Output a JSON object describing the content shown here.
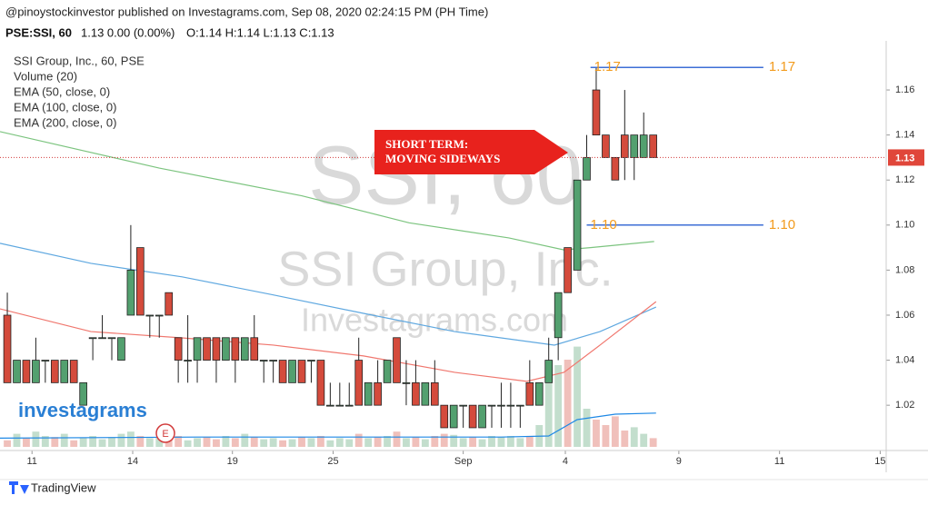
{
  "header": {
    "line1": "@pinoystockinvestor published on Investagrams.com, Sep 08, 2020 02:24:15 PM (PH Time)",
    "symbol": "PSE:SSI, 60",
    "quote": "1.13 0.00 (0.00%)",
    "ohlc_text": "O:1.14 H:1.14 L:1.13 C:1.13"
  },
  "chart_data": {
    "type": "candlestick",
    "legend": [
      "SSI Group, Inc., 60, PSE",
      "Volume (20)",
      "EMA (50, close, 0)",
      "EMA (100, close, 0)",
      "EMA (200, close, 0)"
    ],
    "watermark": [
      "SSI, 60",
      "SSI Group, Inc.",
      "Investagrams.com"
    ],
    "up_color": "#53a06f",
    "down_color": "#d44b3c",
    "x": [
      0,
      1,
      2,
      3,
      4,
      5,
      6,
      7,
      8,
      9,
      10,
      11,
      12,
      13,
      14,
      15,
      16,
      17,
      18,
      19,
      20,
      21,
      22,
      23,
      24,
      25,
      26,
      27,
      28,
      29,
      30,
      31,
      32,
      33,
      34,
      35,
      36,
      37,
      38,
      39,
      40,
      41,
      42,
      43,
      44,
      45,
      46,
      47,
      48,
      49,
      50,
      51,
      52,
      53,
      54,
      55,
      56,
      57,
      58,
      59,
      60,
      61,
      62,
      63,
      64,
      65,
      66,
      67,
      68
    ],
    "open": [
      1.06,
      1.03,
      1.04,
      1.03,
      1.04,
      1.04,
      1.03,
      1.04,
      1.02,
      1.05,
      1.05,
      1.05,
      1.04,
      1.06,
      1.09,
      1.06,
      1.06,
      1.07,
      1.05,
      1.04,
      1.04,
      1.05,
      1.05,
      1.04,
      1.05,
      1.04,
      1.05,
      1.04,
      1.04,
      1.04,
      1.03,
      1.04,
      1.04,
      1.04,
      1.02,
      1.02,
      1.02,
      1.04,
      1.02,
      1.03,
      1.03,
      1.05,
      1.03,
      1.03,
      1.02,
      1.03,
      1.02,
      1.01,
      1.02,
      1.02,
      1.01,
      1.02,
      1.02,
      1.02,
      1.02,
      1.03,
      1.02,
      1.03,
      1.05,
      1.09,
      1.08,
      1.12,
      1.16,
      1.14,
      1.13,
      1.14,
      1.13,
      1.13,
      1.14
    ],
    "high": [
      1.07,
      1.04,
      1.04,
      1.05,
      1.04,
      1.04,
      1.04,
      1.04,
      1.03,
      1.05,
      1.06,
      1.05,
      1.05,
      1.1,
      1.09,
      1.06,
      1.06,
      1.07,
      1.05,
      1.06,
      1.05,
      1.05,
      1.05,
      1.05,
      1.05,
      1.05,
      1.06,
      1.04,
      1.04,
      1.04,
      1.04,
      1.04,
      1.04,
      1.04,
      1.03,
      1.03,
      1.03,
      1.05,
      1.03,
      1.04,
      1.04,
      1.05,
      1.04,
      1.04,
      1.03,
      1.04,
      1.02,
      1.02,
      1.02,
      1.02,
      1.02,
      1.02,
      1.03,
      1.03,
      1.02,
      1.04,
      1.03,
      1.05,
      1.07,
      1.09,
      1.12,
      1.14,
      1.17,
      1.14,
      1.13,
      1.16,
      1.14,
      1.15,
      1.14
    ],
    "low": [
      1.03,
      1.03,
      1.03,
      1.03,
      1.03,
      1.03,
      1.03,
      1.03,
      1.02,
      1.04,
      1.05,
      1.04,
      1.04,
      1.06,
      1.06,
      1.05,
      1.05,
      1.06,
      1.03,
      1.03,
      1.03,
      1.04,
      1.03,
      1.04,
      1.03,
      1.04,
      1.04,
      1.03,
      1.03,
      1.03,
      1.03,
      1.03,
      1.03,
      1.02,
      1.02,
      1.02,
      1.02,
      1.02,
      1.02,
      1.02,
      1.03,
      1.03,
      1.02,
      1.02,
      1.02,
      1.02,
      1.01,
      1.01,
      1.01,
      1.01,
      1.01,
      1.01,
      1.01,
      1.01,
      1.01,
      1.02,
      1.02,
      1.03,
      1.04,
      1.07,
      1.08,
      1.12,
      1.14,
      1.13,
      1.12,
      1.12,
      1.12,
      1.13,
      1.13
    ],
    "close": [
      1.03,
      1.04,
      1.03,
      1.04,
      1.04,
      1.03,
      1.04,
      1.03,
      1.03,
      1.05,
      1.05,
      1.05,
      1.05,
      1.08,
      1.06,
      1.06,
      1.06,
      1.06,
      1.04,
      1.04,
      1.05,
      1.04,
      1.04,
      1.05,
      1.04,
      1.05,
      1.04,
      1.04,
      1.04,
      1.03,
      1.04,
      1.03,
      1.04,
      1.02,
      1.02,
      1.02,
      1.02,
      1.02,
      1.03,
      1.02,
      1.04,
      1.03,
      1.03,
      1.02,
      1.03,
      1.02,
      1.01,
      1.02,
      1.02,
      1.01,
      1.02,
      1.02,
      1.02,
      1.02,
      1.02,
      1.02,
      1.03,
      1.04,
      1.07,
      1.07,
      1.12,
      1.13,
      1.14,
      1.13,
      1.12,
      1.13,
      1.14,
      1.14,
      1.13
    ],
    "volume": [
      6,
      12,
      8,
      14,
      10,
      9,
      12,
      6,
      8,
      10,
      7,
      9,
      12,
      14,
      10,
      8,
      9,
      8,
      10,
      6,
      8,
      9,
      7,
      10,
      8,
      12,
      9,
      7,
      8,
      6,
      7,
      9,
      8,
      10,
      6,
      8,
      7,
      12,
      8,
      9,
      10,
      14,
      8,
      9,
      7,
      10,
      12,
      11,
      8,
      9,
      7,
      10,
      9,
      10,
      8,
      10,
      20,
      65,
      75,
      80,
      92,
      35,
      25,
      20,
      28,
      15,
      18,
      12,
      8
    ],
    "volume_ylim": [
      0,
      100
    ],
    "ema": [
      {
        "name": "EMA (200, close, 0)",
        "color": "#7cc47f",
        "x": [
          -0.77,
          16,
          31,
          42.3,
          52.8,
          58.6,
          61.4,
          68.1
        ],
        "values": [
          1.1415,
          1.1253,
          1.113,
          1.101,
          1.0943,
          1.089,
          1.09,
          1.0927
        ]
      },
      {
        "name": "EMA (100, close, 0)",
        "color": "#5fa8e0",
        "x": [
          -0.77,
          8.8,
          18.4,
          28,
          37.5,
          47.1,
          57.6,
          62.4,
          68.3
        ],
        "values": [
          1.0919,
          1.083,
          1.077,
          1.069,
          1.0608,
          1.0527,
          1.0467,
          1.0527,
          1.0636
        ]
      },
      {
        "name": "EMA (50, close, 0)",
        "color": "#f0776e",
        "x": [
          -0.77,
          8.8,
          18.4,
          28,
          37.5,
          47.1,
          54.7,
          58.6,
          62.4,
          68.3
        ],
        "values": [
          1.0628,
          1.0527,
          1.0499,
          1.0467,
          1.0419,
          1.0346,
          1.0306,
          1.0346,
          1.0467,
          1.066
        ]
      }
    ],
    "volume_ma": {
      "color": "#1e88e5",
      "x": [
        -0.77,
        20,
        40,
        52,
        57,
        60,
        64,
        68.3
      ],
      "values": [
        8,
        9,
        9,
        9,
        10,
        25,
        30,
        31
      ]
    },
    "hlines": [
      {
        "value": 1.17,
        "label": "1.17",
        "x": [
          61.4,
          79.6
        ]
      },
      {
        "value": 1.1,
        "label": "1.10",
        "x": [
          61,
          79.6
        ]
      }
    ],
    "annotation": [
      "SHORT TERM:",
      "MOVING SIDEWAYS"
    ],
    "last_price": {
      "value": 1.13,
      "label": "1.13"
    },
    "xlim": [
      -0.77,
      92.53
    ],
    "ylim": [
      1.0003,
      1.1818
    ],
    "xticks": [
      {
        "value": 2.6,
        "label": "11"
      },
      {
        "value": 13.2,
        "label": "14"
      },
      {
        "value": 23.7,
        "label": "19"
      },
      {
        "value": 34.3,
        "label": "25"
      },
      {
        "value": 48,
        "label": "Sep"
      },
      {
        "value": 58.75,
        "label": "4"
      },
      {
        "value": 70.7,
        "label": "9"
      },
      {
        "value": 81.3,
        "label": "11"
      },
      {
        "value": 91.9,
        "label": "15"
      }
    ],
    "yticks": [
      1.02,
      1.04,
      1.06,
      1.08,
      {
        "value": 1.1,
        "label": "1.10"
      },
      1.12,
      1.14,
      1.16
    ]
  },
  "footer": "TradingView",
  "badge": "E",
  "logo": "investagrams"
}
